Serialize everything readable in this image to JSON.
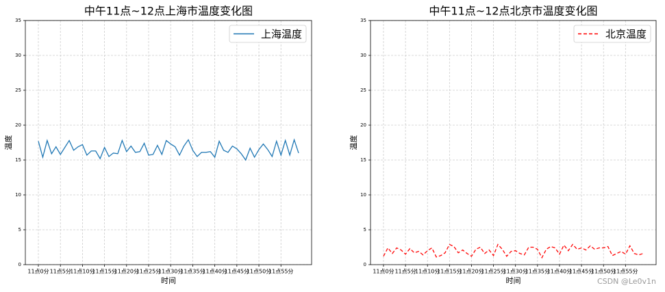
{
  "chart_data": [
    {
      "type": "line",
      "title": "中午11点~12点上海市温度变化图",
      "xlabel": "时间",
      "ylabel": "温度",
      "categories": [
        "11点0分",
        null,
        null,
        null,
        null,
        "11点5分",
        null,
        null,
        null,
        null,
        "11点10分",
        null,
        null,
        null,
        null,
        "11点15分",
        null,
        null,
        null,
        null,
        "11点20分",
        null,
        null,
        null,
        null,
        "11点25分",
        null,
        null,
        null,
        null,
        "11点30分",
        null,
        null,
        null,
        null,
        "11点35分",
        null,
        null,
        null,
        null,
        "11点40分",
        null,
        null,
        null,
        null,
        "11点45分",
        null,
        null,
        null,
        null,
        "11点50分",
        null,
        null,
        null,
        null,
        "11点55分",
        null,
        null,
        null,
        null
      ],
      "series": [
        {
          "name": "上海温度",
          "color": "#1f77b4",
          "linestyle": "solid",
          "values": [
            17.7,
            15.4,
            17.8,
            15.9,
            16.9,
            15.8,
            16.8,
            17.8,
            16.4,
            16.9,
            17.2,
            15.7,
            16.3,
            16.3,
            15.2,
            16.8,
            15.5,
            16.0,
            15.9,
            17.8,
            16.2,
            17.0,
            16.1,
            16.2,
            17.4,
            15.7,
            15.8,
            17.1,
            15.8,
            17.8,
            17.3,
            16.9,
            15.7,
            17.0,
            17.9,
            16.4,
            15.5,
            16.1,
            16.1,
            16.2,
            15.4,
            17.7,
            16.4,
            16.1,
            17.0,
            16.6,
            15.9,
            15.0,
            16.7,
            15.4,
            16.5,
            17.3,
            16.5,
            15.5,
            17.7,
            15.7,
            17.8,
            15.7,
            17.9,
            16.0
          ]
        }
      ],
      "ylim": [
        0,
        35
      ],
      "yticks": [
        0,
        5,
        10,
        15,
        20,
        25,
        30,
        35
      ],
      "grid": true,
      "legend": "upper right"
    },
    {
      "type": "line",
      "title": "中午11点~12点北京市温度变化图",
      "xlabel": "时间",
      "ylabel": "温度",
      "categories": [
        "11点0分",
        null,
        null,
        null,
        null,
        "11点5分",
        null,
        null,
        null,
        null,
        "11点10分",
        null,
        null,
        null,
        null,
        "11点15分",
        null,
        null,
        null,
        null,
        "11点20分",
        null,
        null,
        null,
        null,
        "11点25分",
        null,
        null,
        null,
        null,
        "11点30分",
        null,
        null,
        null,
        null,
        "11点35分",
        null,
        null,
        null,
        null,
        "11点40分",
        null,
        null,
        null,
        null,
        "11点45分",
        null,
        null,
        null,
        null,
        "11点50分",
        null,
        null,
        null,
        null,
        "11点55分",
        null,
        null,
        null,
        null
      ],
      "series": [
        {
          "name": "北京温度",
          "color": "#ff0000",
          "linestyle": "dashed",
          "values": [
            1.2,
            2.4,
            1.6,
            2.4,
            2.1,
            1.5,
            2.3,
            1.7,
            1.9,
            1.4,
            2.0,
            2.4,
            1.1,
            1.3,
            1.7,
            2.9,
            2.6,
            1.7,
            2.1,
            1.6,
            1.2,
            2.2,
            2.5,
            1.6,
            2.1,
            1.3,
            2.9,
            2.2,
            1.2,
            1.9,
            2.0,
            1.6,
            1.4,
            2.5,
            2.5,
            2.2,
            1.0,
            2.2,
            2.6,
            2.4,
            1.5,
            2.8,
            2.0,
            2.9,
            2.2,
            2.4,
            2.1,
            2.7,
            2.2,
            2.4,
            2.4,
            2.6,
            1.3,
            1.6,
            1.9,
            1.5,
            2.7,
            1.6,
            1.4,
            1.6
          ]
        }
      ],
      "ylim": [
        0,
        35
      ],
      "yticks": [
        0,
        5,
        10,
        15,
        20,
        25,
        30,
        35
      ],
      "grid": true,
      "legend": "upper right"
    }
  ],
  "watermark": "CSDN @Le0v1n"
}
